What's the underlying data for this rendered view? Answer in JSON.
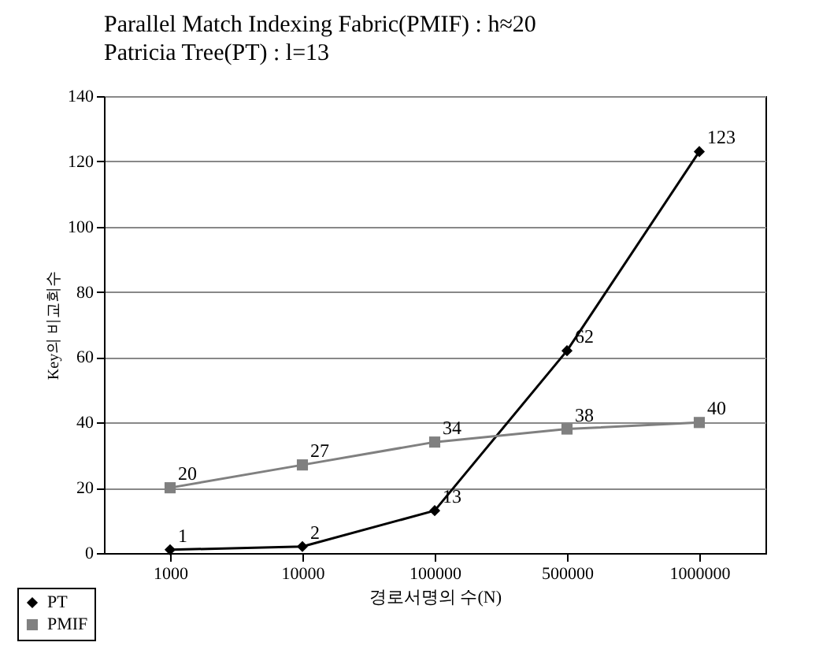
{
  "chart_data": {
    "type": "line",
    "title": "Parallel Match Indexing Fabric(PMIF) : h≈20",
    "subtitle": "Patricia Tree(PT) : l=13",
    "xlabel": "경로서명의 수(N)",
    "ylabel": "Key의 비교회수",
    "categories": [
      "1000",
      "10000",
      "100000",
      "500000",
      "1000000"
    ],
    "series": [
      {
        "name": "PT",
        "color": "#000000",
        "marker": "diamond",
        "values": [
          1,
          2,
          13,
          62,
          123
        ]
      },
      {
        "name": "PMIF",
        "color": "#808080",
        "marker": "square",
        "values": [
          20,
          27,
          34,
          38,
          40
        ]
      }
    ],
    "ylim": [
      0,
      140
    ],
    "yticks": [
      0,
      20,
      40,
      60,
      80,
      100,
      120,
      140
    ],
    "grid": "y",
    "legend": "bottom left",
    "data_labels": true
  }
}
